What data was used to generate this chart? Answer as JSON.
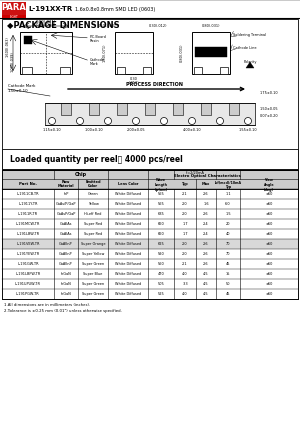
{
  "title_part": "L-191XX-TR",
  "title_desc": "  1.6x0.8x0.8mm SMD LED (0603)",
  "loaded_qty": "Loaded quantity per reel：4000 pcs/reel",
  "table_rows": [
    [
      "L-1911CB-TR",
      "InP",
      "Green",
      "White Diffused",
      "565",
      "2.1",
      "2.6",
      "1.1",
      "±60"
    ],
    [
      "L-1911Y-TR",
      "GaAs/P/GaP",
      "Yellow",
      "White Diffused",
      "565",
      "2.0",
      "1.6",
      "6.0",
      "±60"
    ],
    [
      "L-1911R-TR",
      "GaAsP/GaP",
      "Hi-eff Red",
      "White Diffused",
      "635",
      "2.0",
      "2.6",
      "1.5",
      "±60"
    ],
    [
      "L-191MCW-TR",
      "GaAlAs",
      "Super Red",
      "White Diffused",
      "660",
      "1.7",
      "2.4",
      "20",
      "±60"
    ],
    [
      "L-191LBW-TR",
      "GaAlAs",
      "Super Red",
      "White Diffused",
      "660",
      "1.7",
      "2.4",
      "40",
      "±60"
    ],
    [
      "L-191VEW-TR",
      "GaAlInP",
      "Super Orange",
      "White Diffused",
      "625",
      "2.0",
      "2.6",
      "70",
      "±60"
    ],
    [
      "L-191YEW-TR",
      "GaAlInP",
      "Super Yellow",
      "White Diffused",
      "590",
      "2.0",
      "2.6",
      "70",
      "±60"
    ],
    [
      "L-191GW-TR",
      "GaAlInP",
      "Super Green",
      "White Diffused",
      "560",
      "2.1",
      "2.6",
      "45",
      "±60"
    ],
    [
      "L-191LBFW-TR",
      "InGaN",
      "Super Blue",
      "White Diffused",
      "470",
      "4.0",
      "4.5",
      "15",
      "±60"
    ],
    [
      "L-191UPUW-TR",
      "InGaN",
      "Super Green",
      "White Diffused",
      "505",
      "3.3",
      "4.5",
      "50",
      "±60"
    ],
    [
      "L-191PGW-TR",
      "InGaN",
      "Super Green",
      "White Diffused",
      "525",
      "4.0",
      "4.5",
      "45",
      "±60"
    ]
  ],
  "highlighted_row": 5,
  "note1": "1.All dimensions are in millimeters (inches).",
  "note2": "2.Tolerance is ±0.25 mm (0.01\") unless otherwise specified.",
  "bg_color": "#ffffff",
  "header_bg": "#cccccc",
  "para_red": "#cc1111",
  "para_red2": "#cc0000"
}
